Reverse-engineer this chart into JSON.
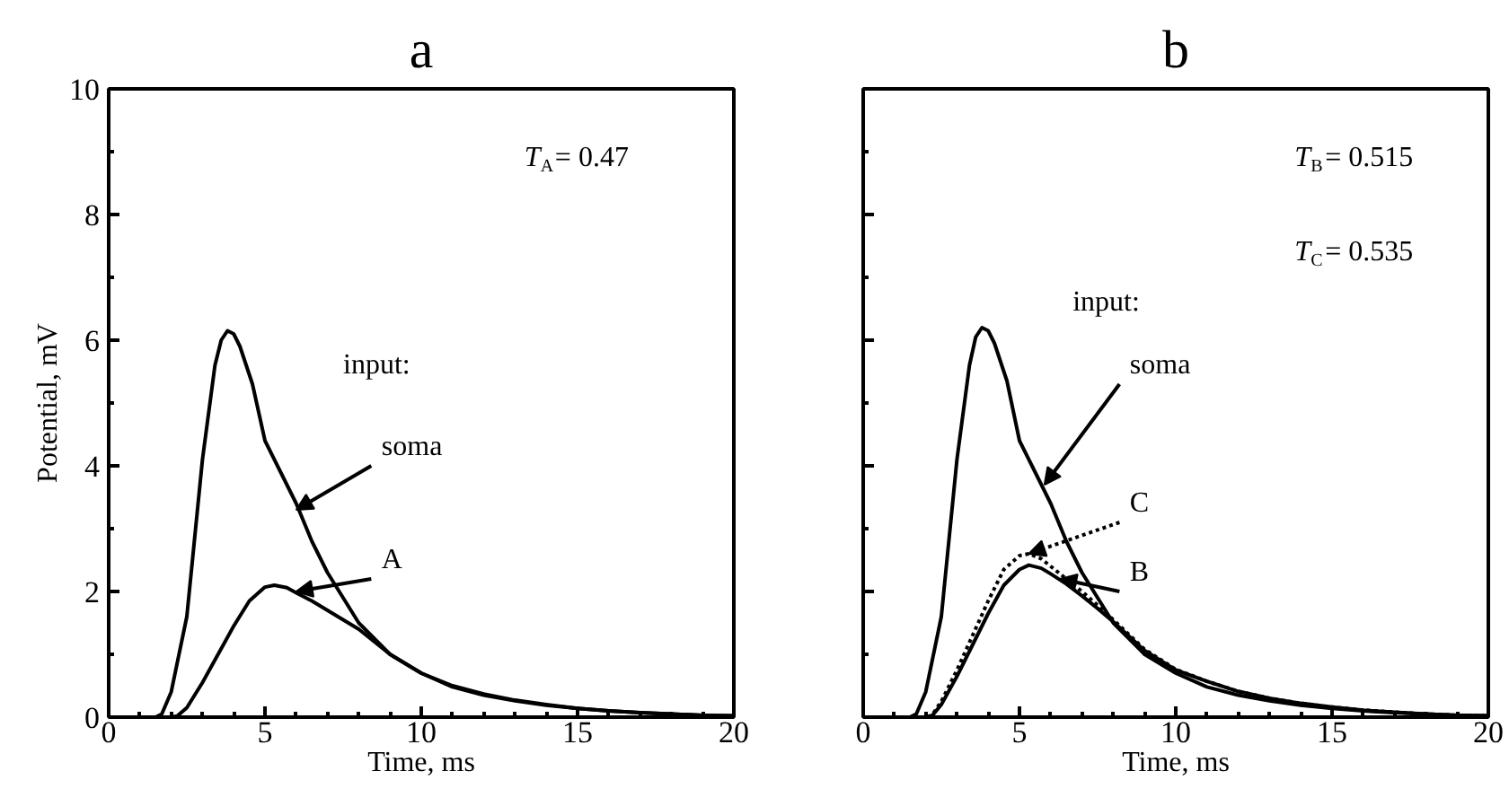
{
  "chart_data": [
    {
      "type": "line",
      "title": "a",
      "xlabel": "Time, ms",
      "ylabel": "Potential, mV",
      "xlim": [
        0,
        20
      ],
      "ylim": [
        0,
        10
      ],
      "xticks": [
        0,
        5,
        10,
        15,
        20
      ],
      "yticks": [
        0,
        2,
        4,
        6,
        8,
        10
      ],
      "grid": false,
      "line_style": "solid",
      "annotations": [
        "input:",
        "T$_{A}$= 0.47",
        {
          "text": "soma",
          "x": 6.0,
          "y": 3.3
        },
        {
          "text": "A",
          "x": 6.0,
          "y": 2.0
        }
      ],
      "series": [
        {
          "color": "#000000",
          "x": [
            0,
            1,
            1.5,
            1.7,
            2,
            2.5,
            3,
            3.4,
            3.6,
            3.8,
            4.0,
            4.2,
            4.6,
            5,
            5.5,
            6,
            6.5,
            7,
            7.5,
            8,
            9,
            10,
            11,
            12,
            13,
            14,
            15,
            16,
            17,
            18,
            19,
            20
          ],
          "values": [
            0,
            0,
            0,
            0.05,
            0.4,
            1.6,
            4.1,
            5.6,
            6.0,
            6.15,
            6.1,
            5.9,
            5.3,
            4.4,
            3.9,
            3.4,
            2.8,
            2.3,
            1.9,
            1.5,
            1.0,
            0.7,
            0.48,
            0.35,
            0.26,
            0.19,
            0.14,
            0.1,
            0.07,
            0.05,
            0.03,
            0.02
          ]
        },
        {
          "color": "#000000",
          "x": [
            0,
            2,
            2.2,
            2.5,
            3,
            3.5,
            4,
            4.5,
            5,
            5.3,
            5.7,
            6,
            6.5,
            7,
            7.5,
            8,
            9,
            10,
            11,
            12,
            13,
            14,
            15,
            16,
            17,
            18,
            19,
            20
          ],
          "values": [
            0,
            0,
            0.02,
            0.15,
            0.55,
            1.0,
            1.45,
            1.85,
            2.07,
            2.1,
            2.06,
            1.98,
            1.85,
            1.7,
            1.55,
            1.4,
            1.0,
            0.7,
            0.5,
            0.37,
            0.27,
            0.2,
            0.14,
            0.1,
            0.07,
            0.05,
            0.03,
            0.02
          ]
        }
      ]
    },
    {
      "type": "line",
      "title": "b",
      "xlabel": "Time, ms",
      "xlim": [
        0,
        20
      ],
      "ylim": [
        0,
        10
      ],
      "xticks": [
        0,
        5,
        10,
        15,
        20
      ],
      "yticks": [
        0,
        2,
        4,
        6,
        8,
        10
      ],
      "tick_labels": "x",
      "grid": false,
      "annotations": [
        "input:",
        "T$_{B}$= 0.515",
        "T$_{C}$= 0.535",
        {
          "text": "soma",
          "x": 5.8,
          "y": 3.7
        },
        {
          "text": "C",
          "x": 5.3,
          "y": 2.6
        },
        {
          "text": "B",
          "x": 6.3,
          "y": 2.2
        }
      ],
      "series": [
        {
          "color": "#000000",
          "line_style": "solid",
          "x": [
            0,
            1,
            1.5,
            1.7,
            2,
            2.5,
            3,
            3.4,
            3.6,
            3.8,
            4.0,
            4.2,
            4.6,
            5,
            5.5,
            6,
            6.5,
            7,
            7.5,
            8,
            9,
            10,
            11,
            12,
            13,
            14,
            15,
            16,
            17,
            18,
            19,
            20
          ],
          "values": [
            0,
            0,
            0,
            0.05,
            0.4,
            1.6,
            4.1,
            5.6,
            6.05,
            6.2,
            6.15,
            5.95,
            5.35,
            4.4,
            3.9,
            3.4,
            2.8,
            2.3,
            1.9,
            1.5,
            1.0,
            0.7,
            0.48,
            0.35,
            0.26,
            0.19,
            0.14,
            0.1,
            0.07,
            0.05,
            0.03,
            0.02
          ]
        },
        {
          "color": "#000000",
          "line_style": "dotted",
          "x": [
            0,
            2,
            2.2,
            2.5,
            3,
            3.5,
            4,
            4.5,
            5,
            5.3,
            5.7,
            6,
            6.5,
            7,
            7.5,
            8,
            9,
            10,
            11,
            12,
            13,
            14,
            15,
            16,
            17,
            18,
            19,
            20
          ],
          "values": [
            0,
            0,
            0.03,
            0.25,
            0.75,
            1.3,
            1.85,
            2.35,
            2.57,
            2.6,
            2.52,
            2.4,
            2.2,
            2.0,
            1.78,
            1.55,
            1.08,
            0.76,
            0.57,
            0.41,
            0.3,
            0.22,
            0.16,
            0.11,
            0.08,
            0.05,
            0.03,
            0.02
          ]
        },
        {
          "color": "#000000",
          "line_style": "solid",
          "x": [
            0,
            2,
            2.2,
            2.5,
            3,
            3.5,
            4,
            4.5,
            5,
            5.3,
            5.7,
            6,
            6.5,
            7,
            7.5,
            8,
            9,
            10,
            11,
            12,
            13,
            14,
            15,
            16,
            17,
            18,
            19,
            20
          ],
          "values": [
            0,
            0,
            0.02,
            0.2,
            0.65,
            1.15,
            1.65,
            2.1,
            2.35,
            2.42,
            2.37,
            2.28,
            2.12,
            1.93,
            1.73,
            1.52,
            1.06,
            0.75,
            0.57,
            0.41,
            0.3,
            0.22,
            0.16,
            0.11,
            0.08,
            0.05,
            0.03,
            0.02
          ]
        }
      ]
    }
  ]
}
